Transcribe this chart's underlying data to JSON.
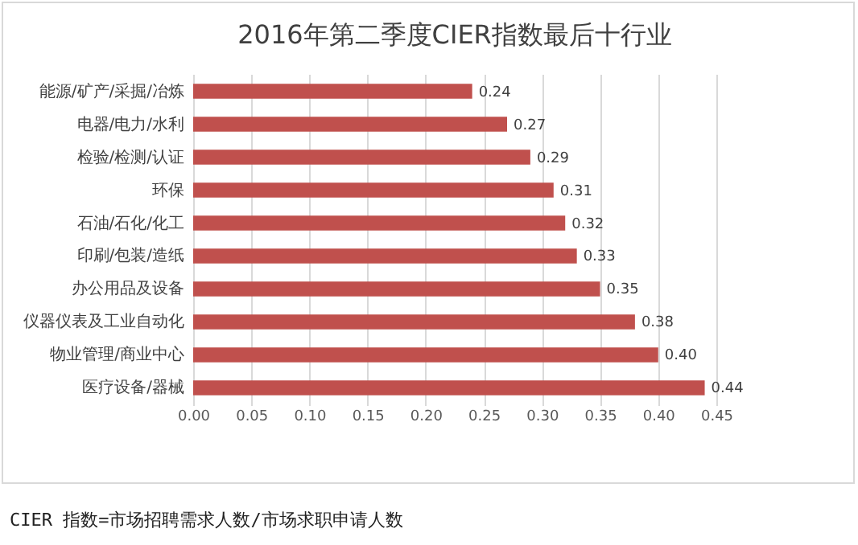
{
  "chart_data": {
    "type": "bar",
    "orientation": "horizontal",
    "title": "2016年第二季度CIER指数最后十行业",
    "categories": [
      "能源/矿产/采掘/冶炼",
      "电器/电力/水利",
      "检验/检测/认证",
      "环保",
      "石油/石化/化工",
      "印刷/包装/造纸",
      "办公用品及设备",
      "仪器仪表及工业自动化",
      "物业管理/商业中心",
      "医疗设备/器械"
    ],
    "values": [
      0.24,
      0.27,
      0.29,
      0.31,
      0.32,
      0.33,
      0.35,
      0.38,
      0.4,
      0.44
    ],
    "value_labels": [
      "0.24",
      "0.27",
      "0.29",
      "0.31",
      "0.32",
      "0.33",
      "0.35",
      "0.38",
      "0.40",
      "0.44"
    ],
    "color": "#c0504d",
    "xlim": [
      0,
      0.45
    ],
    "xticks": [
      {
        "value": 0,
        "label": "0.00"
      },
      {
        "value": 0.05,
        "label": "0.05"
      },
      {
        "value": 0.1,
        "label": "0.10"
      },
      {
        "value": 0.15,
        "label": "0.15"
      },
      {
        "value": 0.2,
        "label": "0.20"
      },
      {
        "value": 0.25,
        "label": "0.25"
      },
      {
        "value": 0.3,
        "label": "0.30"
      },
      {
        "value": 0.35,
        "label": "0.35"
      },
      {
        "value": 0.4,
        "label": "0.40"
      },
      {
        "value": 0.45,
        "label": "0.45"
      }
    ],
    "grid": "x",
    "annotations": [
      "CIER 指数=市场招聘需求人数/市场求职申请人数"
    ]
  }
}
